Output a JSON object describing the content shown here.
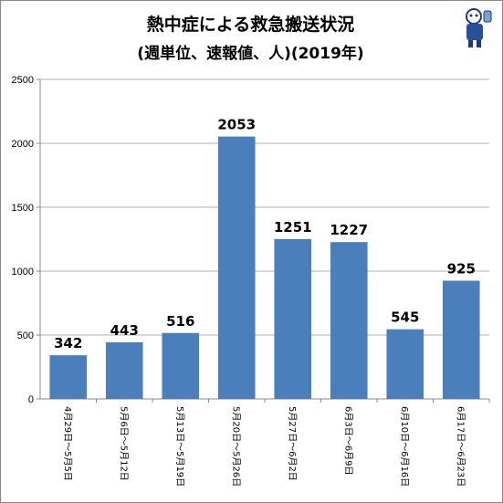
{
  "title": "熱中症による救急搬送状況",
  "subtitle": "(週単位、速報値、人)(2019年)",
  "colors": {
    "bar": "#4a7fbc",
    "grid": "#b0b0b0",
    "axis": "#888888"
  },
  "mascot": {
    "icon": "mascot-character-logo"
  },
  "chart_data": {
    "type": "bar",
    "title": "熱中症による救急搬送状況",
    "subtitle": "(週単位、速報値、人)(2019年)",
    "xlabel": "",
    "ylabel": "",
    "ylim": [
      0,
      2500
    ],
    "yticks": [
      0,
      500,
      1000,
      1500,
      2000,
      2500
    ],
    "grid": true,
    "legend": "none",
    "categories": [
      "4月29日～5月5日",
      "5月6日～5月12日",
      "5月13日～5月19日",
      "5月20日～5月26日",
      "5月27日～6月2日",
      "6月3日～6月9日",
      "6月10日～6月16日",
      "6月17日～6月23日"
    ],
    "values": [
      342,
      443,
      516,
      2053,
      1251,
      1227,
      545,
      925
    ]
  }
}
